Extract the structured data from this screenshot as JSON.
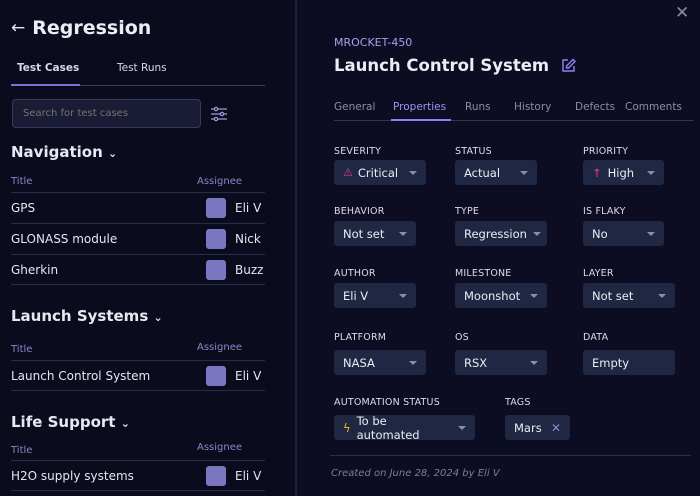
{
  "left": {
    "back_icon": "arrow-left-icon",
    "title": "Regression",
    "tabs": [
      {
        "label": "Test Cases",
        "active": true
      },
      {
        "label": "Test Runs",
        "active": false
      }
    ],
    "search_placeholder": "Search for test cases",
    "filter_icon": "sliders-icon",
    "sections": [
      {
        "name": "Navigation",
        "col_title": "Title",
        "col_assignee": "Assignee",
        "rows": [
          {
            "title": "GPS",
            "assignee": "Eli V"
          },
          {
            "title": "GLONASS module",
            "assignee": "Nick"
          },
          {
            "title": "Gherkin",
            "assignee": "Buzz"
          }
        ]
      },
      {
        "name": "Launch Systems",
        "col_title": "Title",
        "col_assignee": "Assignee",
        "rows": [
          {
            "title": "Launch Control System",
            "assignee": "Eli V"
          }
        ]
      },
      {
        "name": "Life Support",
        "col_title": "Title",
        "col_assignee": "Assignee",
        "rows": [
          {
            "title": "H2O supply systems",
            "assignee": "Eli V"
          }
        ]
      }
    ]
  },
  "detail": {
    "id": "MROCKET-450",
    "title": "Launch Control System",
    "tabs": [
      "General",
      "Properties",
      "Runs",
      "History",
      "Defects",
      "Comments"
    ],
    "active_tab": "Properties",
    "fields": {
      "severity": {
        "label": "SEVERITY",
        "value": "Critical"
      },
      "status": {
        "label": "STATUS",
        "value": "Actual"
      },
      "priority": {
        "label": "PRIORITY",
        "value": "High"
      },
      "behavior": {
        "label": "BEHAVIOR",
        "value": "Not set"
      },
      "type": {
        "label": "TYPE",
        "value": "Regression"
      },
      "is_flaky": {
        "label": "IS FLAKY",
        "value": "No"
      },
      "author": {
        "label": "AUTHOR",
        "value": "Eli V"
      },
      "milestone": {
        "label": "MILESTONE",
        "value": "Moonshot"
      },
      "layer": {
        "label": "LAYER",
        "value": "Not set"
      },
      "platform": {
        "label": "PLATFORM",
        "value": "NASA"
      },
      "os": {
        "label": "OS",
        "value": "RSX"
      },
      "data": {
        "label": "DATA",
        "value": "Empty"
      },
      "automation": {
        "label": "AUTOMATION STATUS",
        "value": "To be automated"
      },
      "tags": {
        "label": "TAGS",
        "values": [
          "Mars"
        ]
      }
    },
    "footer": "Created on June 28, 2024 by Eli V",
    "colors": {
      "accent": "#8f84f0",
      "danger": "#e0407a",
      "warning": "#f2b51c"
    }
  }
}
